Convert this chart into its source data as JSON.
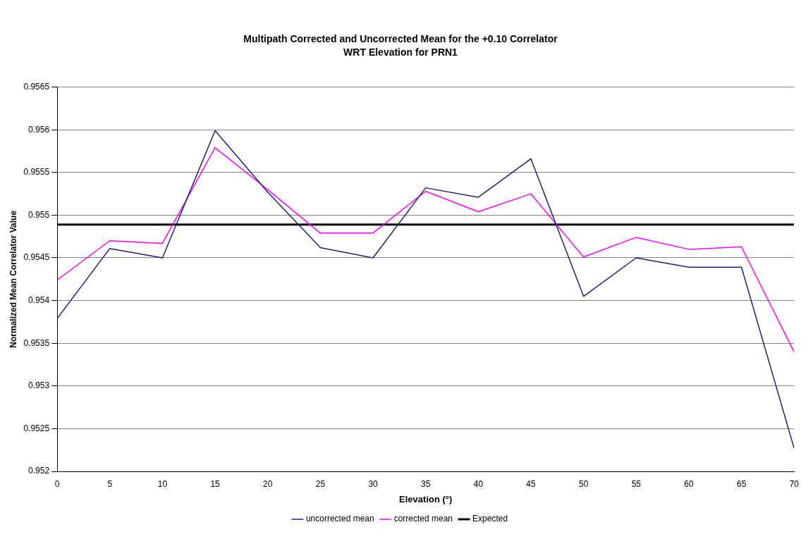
{
  "chart_data": {
    "type": "line",
    "title": "Multipath Corrected and Uncorrected Mean for the +0.10 Correlator",
    "subtitle": "WRT Elevation for PRN1",
    "xlabel": "Elevation (°)",
    "ylabel": "Normalized Mean Correlator Value",
    "x": [
      0,
      5,
      10,
      15,
      20,
      25,
      30,
      35,
      40,
      45,
      50,
      55,
      60,
      65,
      70
    ],
    "xlim": [
      0,
      70
    ],
    "xticks": [
      0,
      5,
      10,
      15,
      20,
      25,
      30,
      35,
      40,
      45,
      50,
      55,
      60,
      65,
      70
    ],
    "ylim": [
      0.952,
      0.9565
    ],
    "yticks": [
      0.952,
      0.9525,
      0.953,
      0.9535,
      0.954,
      0.9545,
      0.955,
      0.9555,
      0.956,
      0.9565
    ],
    "series": [
      {
        "name": "uncorrected mean",
        "color": "#1f1f7a",
        "values": [
          0.95379,
          0.95461,
          0.9545,
          0.95599,
          0.95527,
          0.95462,
          0.9545,
          0.95532,
          0.95521,
          0.95566,
          0.95405,
          0.9545,
          0.95439,
          0.95439,
          0.95227
        ]
      },
      {
        "name": "corrected mean",
        "color": "#ff00ff",
        "values": [
          0.95424,
          0.9547,
          0.95467,
          0.95579,
          0.9553,
          0.95479,
          0.95479,
          0.95528,
          0.95504,
          0.95525,
          0.95451,
          0.95474,
          0.9546,
          0.95463,
          0.9534
        ]
      },
      {
        "name": "Expected",
        "color": "#000000",
        "values": [
          0.95489,
          0.95489,
          0.95489,
          0.95489,
          0.95489,
          0.95489,
          0.95489,
          0.95489,
          0.95489,
          0.95489,
          0.95489,
          0.95489,
          0.95489,
          0.95489,
          0.95489
        ]
      }
    ],
    "grid": "y",
    "legend": "bottom",
    "marker": "none",
    "line_style": "solid"
  }
}
